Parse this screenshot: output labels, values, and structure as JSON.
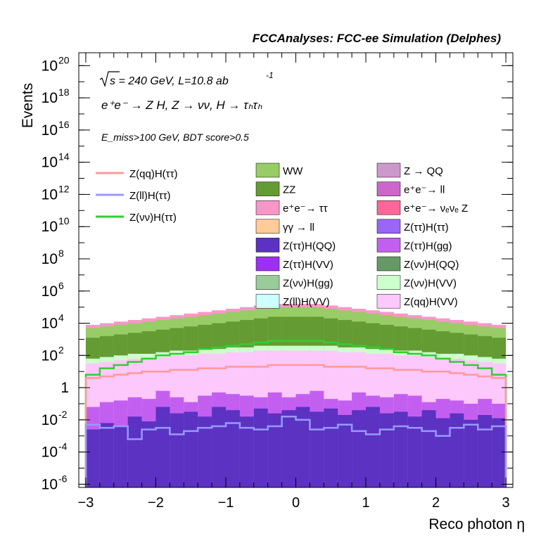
{
  "chart_data": {
    "type": "histogram",
    "title": "FCCAnalyses: FCC-ee Simulation (Delphes)",
    "xlabel": "Reco photon η",
    "ylabel": "Events",
    "xlim": [
      -3.1,
      3.1
    ],
    "ylim_log10": [
      -6.2,
      20.8
    ],
    "y_scale": "log",
    "x_ticks": [
      "−3",
      "−2",
      "−1",
      "0",
      "1",
      "2",
      "3"
    ],
    "y_ticks": [
      {
        "text": "10",
        "exp": "20"
      },
      {
        "text": "10",
        "exp": "18"
      },
      {
        "text": "10",
        "exp": "16"
      },
      {
        "text": "10",
        "exp": "14"
      },
      {
        "text": "10",
        "exp": "12"
      },
      {
        "text": "10",
        "exp": "10"
      },
      {
        "text": "10",
        "exp": "8"
      },
      {
        "text": "10",
        "exp": "6"
      },
      {
        "text": "10",
        "exp": "4"
      },
      {
        "text": "10",
        "exp": "2"
      },
      {
        "text": "1",
        "exp": ""
      },
      {
        "text": "10",
        "exp": "-2"
      },
      {
        "text": "10",
        "exp": "-4"
      },
      {
        "text": "10",
        "exp": "-6"
      }
    ],
    "annotations": {
      "sqrt_s": "s = 240 GeV, L=10.8 ab",
      "lumi_exp": "-1",
      "process": "e⁺e⁻ → Z H, Z → νν, H → τₕτₕ",
      "selection": "E_miss>100 GeV, BDT score>0.5"
    },
    "bin_range": [
      -3.0,
      3.0
    ],
    "n_bins": 30,
    "stack_totals_log10": [
      3.9,
      4.0,
      4.1,
      4.2,
      4.3,
      4.4,
      4.5,
      4.6,
      4.7,
      4.8,
      4.9,
      5.0,
      5.1,
      5.2,
      5.2,
      5.2,
      5.2,
      5.1,
      5.0,
      4.9,
      4.8,
      4.7,
      4.6,
      4.5,
      4.4,
      4.3,
      4.2,
      4.1,
      4.0,
      3.9
    ],
    "stack_layers": [
      {
        "name": "Z(ττ)H(QQ)",
        "color": "#5b32c2",
        "log10": [
          -2.6,
          -2.2,
          -2.4,
          -1.8,
          -2.1,
          -1.2,
          -1.6,
          -1.5,
          -1.8,
          -1.2,
          -1.4,
          -1.8,
          -1.3,
          -1.6,
          -1.4,
          -1.2,
          -1.5,
          -1.3,
          -1.7,
          -1.4,
          -1.2,
          -1.6,
          -1.5,
          -1.8,
          -1.4,
          -1.9,
          -1.6,
          -2.0,
          -1.7,
          -1.9
        ]
      },
      {
        "name": "Z(ττ)H(gg)",
        "color": "#c35ff0",
        "log10": [
          -1.2,
          -0.9,
          -0.8,
          -0.6,
          -0.7,
          -0.2,
          -0.6,
          -0.9,
          -0.5,
          -0.3,
          -0.4,
          -0.5,
          -0.6,
          -0.3,
          -0.6,
          -0.4,
          -0.2,
          -0.7,
          -0.8,
          -0.3,
          -0.5,
          -0.6,
          -0.4,
          -0.5,
          -0.9,
          -0.7,
          -0.8,
          -1.0,
          -0.7,
          -1.0
        ]
      },
      {
        "name": "Z(qq)H(VV)",
        "color": "#fdc8fc",
        "log10": [
          1.5,
          1.6,
          1.7,
          1.8,
          1.8,
          1.9,
          2.0,
          2.0,
          2.1,
          2.1,
          2.2,
          2.2,
          2.3,
          2.3,
          2.3,
          2.3,
          2.3,
          2.3,
          2.2,
          2.2,
          2.1,
          2.1,
          2.0,
          2.0,
          1.9,
          1.8,
          1.8,
          1.7,
          1.6,
          1.5
        ]
      },
      {
        "name": "Z(νν)H(VV)",
        "color": "#ccffcc",
        "log10": [
          1.8,
          1.9,
          2.0,
          2.1,
          2.1,
          2.2,
          2.3,
          2.3,
          2.4,
          2.4,
          2.5,
          2.5,
          2.6,
          2.6,
          2.6,
          2.6,
          2.6,
          2.6,
          2.5,
          2.5,
          2.4,
          2.4,
          2.3,
          2.3,
          2.2,
          2.1,
          2.1,
          2.0,
          1.9,
          1.8
        ]
      },
      {
        "name": "ZZ",
        "color": "#659b33",
        "log10": [
          3.1,
          3.2,
          3.3,
          3.4,
          3.5,
          3.6,
          3.7,
          3.8,
          3.9,
          4.0,
          4.1,
          4.2,
          4.3,
          4.4,
          4.4,
          4.4,
          4.4,
          4.3,
          4.2,
          4.1,
          4.0,
          3.9,
          3.8,
          3.7,
          3.6,
          3.5,
          3.4,
          3.3,
          3.2,
          3.1
        ]
      },
      {
        "name": "WW",
        "color": "#97cc66",
        "log10": [
          3.7,
          3.8,
          3.9,
          4.0,
          4.1,
          4.2,
          4.3,
          4.4,
          4.5,
          4.6,
          4.7,
          4.8,
          4.9,
          5.0,
          5.0,
          5.0,
          5.0,
          4.9,
          4.8,
          4.7,
          4.6,
          4.5,
          4.4,
          4.3,
          4.2,
          4.1,
          4.0,
          3.9,
          3.8,
          3.7
        ]
      },
      {
        "name": "e⁺e⁻→ ττ",
        "color": "#f996c8",
        "log10": [
          3.9,
          4.0,
          4.1,
          4.2,
          4.3,
          4.4,
          4.5,
          4.6,
          4.7,
          4.8,
          4.9,
          5.0,
          5.1,
          5.2,
          5.2,
          5.2,
          5.2,
          5.1,
          5.0,
          4.9,
          4.8,
          4.7,
          4.6,
          4.5,
          4.4,
          4.3,
          4.2,
          4.1,
          4.0,
          3.9
        ]
      }
    ],
    "signal_lines": [
      {
        "name": "Z(νν)H(ττ)",
        "color": "#33cc33",
        "log10": [
          0.8,
          1.2,
          1.4,
          1.6,
          1.8,
          2.0,
          2.1,
          2.2,
          2.4,
          2.5,
          2.6,
          2.7,
          2.8,
          2.9,
          2.9,
          2.9,
          2.9,
          2.8,
          2.7,
          2.6,
          2.5,
          2.4,
          2.2,
          2.1,
          2.0,
          1.8,
          1.6,
          1.4,
          1.2,
          0.8
        ]
      },
      {
        "name": "Z(qq)H(ττ)",
        "color": "#ff9999",
        "log10": [
          0.6,
          0.7,
          0.8,
          0.9,
          1.0,
          1.0,
          1.1,
          1.1,
          1.2,
          1.2,
          1.3,
          1.3,
          1.3,
          1.4,
          1.4,
          1.4,
          1.4,
          1.3,
          1.3,
          1.3,
          1.2,
          1.2,
          1.1,
          1.1,
          1.0,
          1.0,
          0.9,
          0.8,
          0.7,
          0.6
        ]
      },
      {
        "name": "Z(ll)H(ττ)",
        "color": "#9999ff",
        "log10": [
          -2.3,
          -2.5,
          -2.4,
          -3.2,
          -2.6,
          -2.5,
          -2.9,
          -2.7,
          -2.5,
          -2.4,
          -2.2,
          -2.5,
          -2.6,
          -2.4,
          -1.8,
          -2.0,
          -2.6,
          -2.5,
          -2.3,
          -2.7,
          -2.9,
          -2.6,
          -2.4,
          -2.5,
          -2.7,
          -3.0,
          -2.5,
          -2.3,
          -2.6,
          -2.4
        ]
      }
    ],
    "legend": {
      "lines": [
        {
          "label": "Z(qq)H(ττ)",
          "color": "#ff9999"
        },
        {
          "label": "Z(ll)H(ττ)",
          "color": "#9999ff"
        },
        {
          "label": "Z(νν)H(ττ)",
          "color": "#33cc33"
        }
      ],
      "boxes_left": [
        {
          "label": "WW",
          "color": "#97cc66"
        },
        {
          "label": "ZZ",
          "color": "#659b33"
        },
        {
          "label": "e⁺e⁻→ ττ",
          "color": "#f996c8"
        },
        {
          "label": "γγ → ll",
          "color": "#ffcc99"
        },
        {
          "label": "Z(ττ)H(QQ)",
          "color": "#5b32c2"
        },
        {
          "label": "Z(ττ)H(VV)",
          "color": "#9b30f3"
        },
        {
          "label": "Z(νν)H(gg)",
          "color": "#99cc99"
        },
        {
          "label": "Z(ll)H(VV)",
          "color": "#ccffff"
        }
      ],
      "boxes_right": [
        {
          "label": "Z → QQ",
          "color": "#cc99cc"
        },
        {
          "label": "e⁺e⁻→ ll",
          "color": "#cc66cc"
        },
        {
          "label": "e⁺e⁻→ νₑνₑ Z",
          "color": "#ff6699"
        },
        {
          "label": "Z(ττ)H(ττ)",
          "color": "#9966f5"
        },
        {
          "label": "Z(ττ)H(gg)",
          "color": "#c35ff0"
        },
        {
          "label": "Z(νν)H(QQ)",
          "color": "#669966"
        },
        {
          "label": "Z(νν)H(VV)",
          "color": "#ccffcc"
        },
        {
          "label": "Z(qq)H(VV)",
          "color": "#fdc8fc"
        }
      ]
    }
  }
}
